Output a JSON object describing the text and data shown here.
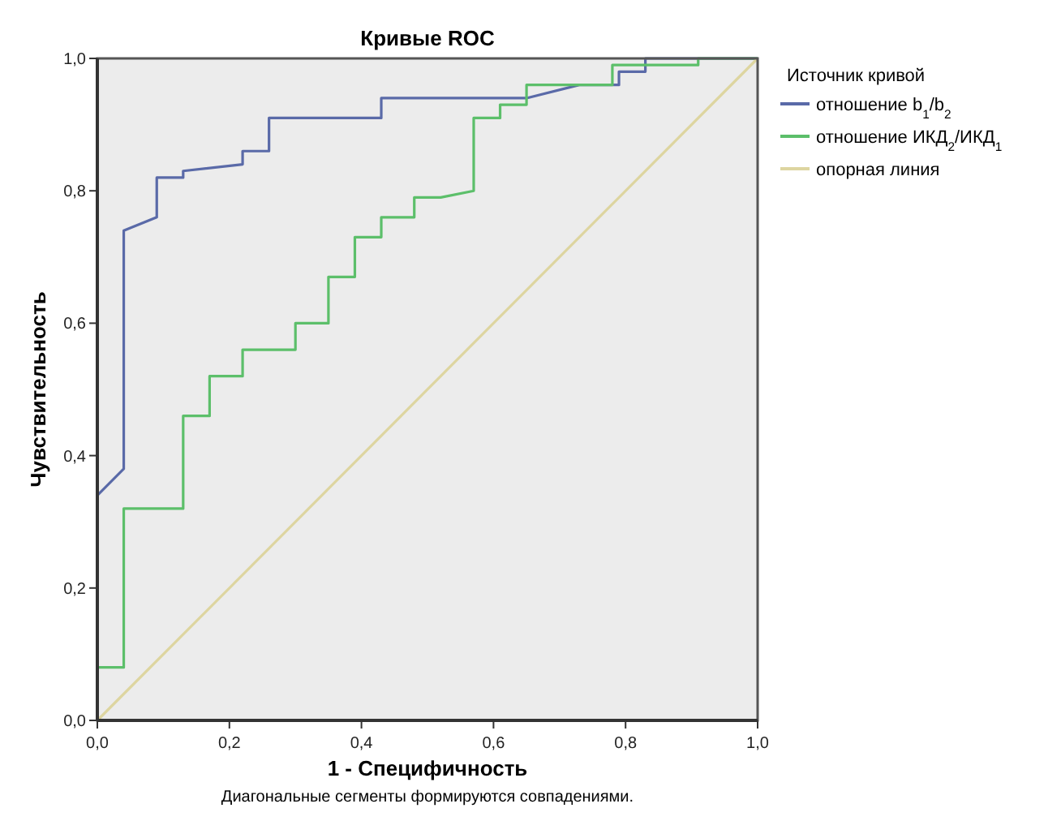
{
  "chart_data": {
    "type": "line",
    "title": "Кривые ROC",
    "xlabel": "1 - Специфичность",
    "ylabel": "Чувствительность",
    "legend_title": "Источник кривой",
    "legend": "right",
    "grid": false,
    "line_style": "solid",
    "marker": "none",
    "annotations": [
      "Диагональные сегменты формируются совпадениями."
    ],
    "xlim": [
      0,
      1
    ],
    "ylim": [
      0,
      1
    ],
    "xticks": [
      {
        "value": 0,
        "label": "0,0"
      },
      {
        "value": 0.2,
        "label": "0,2"
      },
      {
        "value": 0.4,
        "label": "0,4"
      },
      {
        "value": 0.6,
        "label": "0,6"
      },
      {
        "value": 0.8,
        "label": "0,8"
      },
      {
        "value": 1,
        "label": "1,0"
      }
    ],
    "yticks": [
      {
        "value": 0,
        "label": "0,0"
      },
      {
        "value": 0.2,
        "label": "0,2"
      },
      {
        "value": 0.4,
        "label": "0,4"
      },
      {
        "value": 0.6,
        "label": "0,6"
      },
      {
        "value": 0.8,
        "label": "0,8"
      },
      {
        "value": 1,
        "label": "1,0"
      }
    ],
    "series": [
      {
        "name": "отношение b$_{1}$/b$_{2}$",
        "color": "#5a6aa8",
        "x": [
          0,
          0,
          0.04,
          0.04,
          0.09,
          0.09,
          0.13,
          0.13,
          0.22,
          0.22,
          0.26,
          0.26,
          0.43,
          0.43,
          0.65,
          0.73,
          0.79,
          0.79,
          0.83,
          0.83,
          1
        ],
        "values": [
          0,
          0.34,
          0.38,
          0.74,
          0.76,
          0.82,
          0.82,
          0.83,
          0.84,
          0.86,
          0.86,
          0.91,
          0.91,
          0.94,
          0.94,
          0.96,
          0.96,
          0.98,
          0.98,
          1,
          1
        ]
      },
      {
        "name": "отношение ИКД$_{2}$/ИКД$_{1}$",
        "color": "#5cbf6a",
        "x": [
          0,
          0,
          0.04,
          0.04,
          0.13,
          0.13,
          0.17,
          0.17,
          0.22,
          0.22,
          0.3,
          0.3,
          0.35,
          0.35,
          0.39,
          0.39,
          0.43,
          0.43,
          0.48,
          0.48,
          0.52,
          0.57,
          0.57,
          0.61,
          0.61,
          0.65,
          0.65,
          0.78,
          0.78,
          0.91,
          0.91,
          1
        ],
        "values": [
          0,
          0.08,
          0.08,
          0.32,
          0.32,
          0.46,
          0.46,
          0.52,
          0.52,
          0.56,
          0.56,
          0.6,
          0.6,
          0.67,
          0.67,
          0.73,
          0.73,
          0.76,
          0.76,
          0.79,
          0.79,
          0.8,
          0.91,
          0.91,
          0.93,
          0.93,
          0.96,
          0.96,
          0.99,
          0.99,
          1,
          1
        ]
      },
      {
        "name": "опорная линия",
        "color": "#ddd5a0",
        "x": [
          0,
          1
        ],
        "values": [
          0,
          1
        ]
      }
    ]
  }
}
